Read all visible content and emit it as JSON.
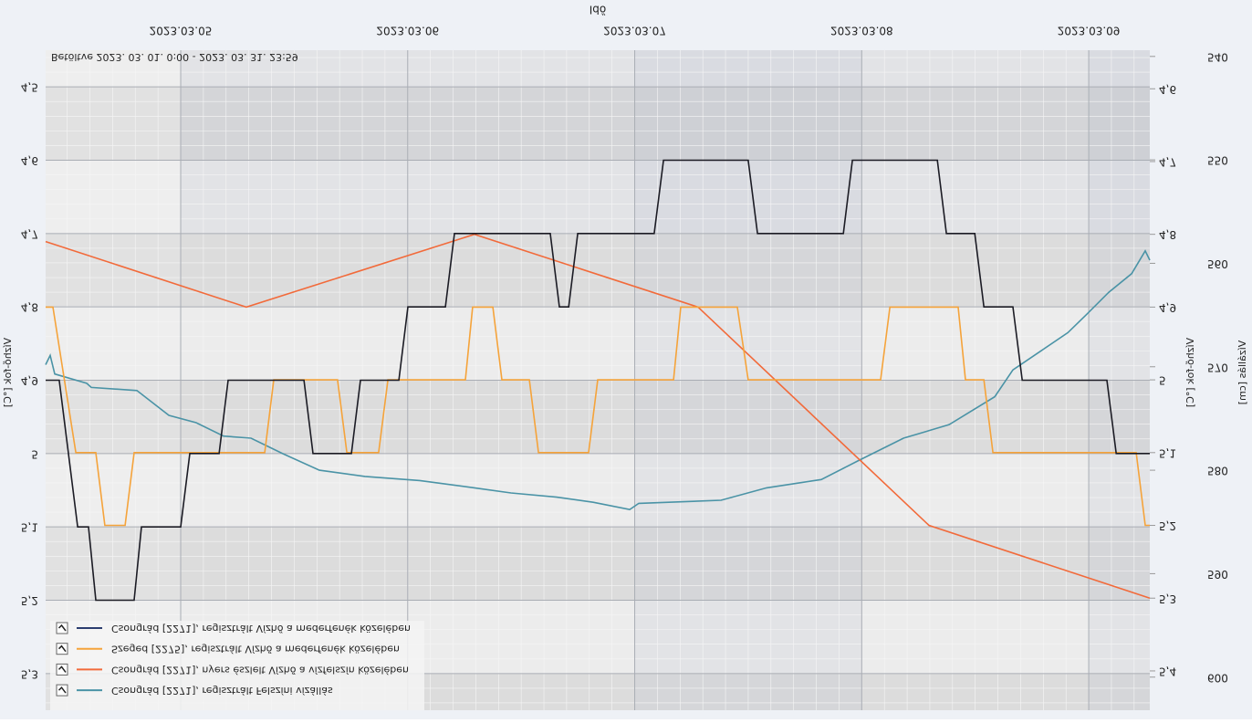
{
  "chart_data": {
    "type": "line",
    "xlabel": "Idő",
    "ylabel": "Vízhő-fok [°C]",
    "y2label": "Vízhő-fok [°C]",
    "y3label": "Vízállás [cm]",
    "annotation": "Betöltve 2023. 03. 01. 0:00 - 2023. 03. 31. 23:59",
    "xlim": [
      4.405,
      9.269
    ],
    "xticks": [
      {
        "value": 5,
        "label": "2023.03.05"
      },
      {
        "value": 6,
        "label": "2023.03.06"
      },
      {
        "value": 7,
        "label": "2023.03.07"
      },
      {
        "value": 8,
        "label": "2023.03.08"
      },
      {
        "value": 9,
        "label": "2023.03.09"
      }
    ],
    "ylim": [
      4.45,
      5.35
    ],
    "yticks": [
      {
        "value": 4.5,
        "label": "4,5"
      },
      {
        "value": 4.6,
        "label": "4,6"
      },
      {
        "value": 4.7,
        "label": "4,7"
      },
      {
        "value": 4.8,
        "label": "4,8"
      },
      {
        "value": 4.9,
        "label": "4,9"
      },
      5,
      {
        "value": 5.1,
        "label": "5,1"
      },
      {
        "value": 5.2,
        "label": "5,2"
      },
      {
        "value": 5.3,
        "label": "5,3"
      }
    ],
    "y2lim": [
      4.547,
      5.454
    ],
    "y2ticks": [
      {
        "value": 4.6,
        "label": "4,6"
      },
      {
        "value": 4.7,
        "label": "4,7"
      },
      {
        "value": 4.8,
        "label": "4,8"
      },
      {
        "value": 4.9,
        "label": "4,9"
      },
      5,
      {
        "value": 5.1,
        "label": "5,1"
      },
      {
        "value": 5.2,
        "label": "5,2"
      },
      {
        "value": 5.3,
        "label": "5,3"
      },
      {
        "value": 5.4,
        "label": "5,4"
      }
    ],
    "y3lim": [
      539.4,
      603.2
    ],
    "y3ticks": [
      540,
      550,
      560,
      570,
      580,
      590,
      600
    ],
    "grid": true,
    "series": [
      {
        "name": "Csongrád [2271], regisztrált Vízhő a mederfenék közelében",
        "color": "#1b1b24",
        "legend_color": "#2c3e70",
        "axis": "y",
        "x": [
          4.405,
          4.465,
          4.546,
          4.594,
          4.626,
          4.795,
          4.827,
          5.0,
          5.04,
          5.169,
          5.209,
          5.543,
          5.583,
          5.752,
          5.792,
          5.961,
          6.001,
          6.166,
          6.206,
          6.628,
          6.668,
          6.709,
          6.749,
          7.086,
          7.127,
          7.5,
          7.541,
          7.919,
          7.959,
          8.333,
          8.373,
          8.498,
          8.538,
          8.666,
          8.707,
          9.08,
          9.121,
          9.269
        ],
        "values": [
          4.9,
          4.9,
          5.1,
          5.1,
          5.2,
          5.2,
          5.1,
          5.1,
          5.0,
          5.0,
          4.9,
          4.9,
          5.0,
          5.0,
          4.9,
          4.9,
          4.8,
          4.8,
          4.7,
          4.7,
          4.8,
          4.8,
          4.7,
          4.7,
          4.6,
          4.6,
          4.7,
          4.7,
          4.6,
          4.6,
          4.7,
          4.7,
          4.8,
          4.8,
          4.9,
          4.9,
          5.0,
          5.0
        ]
      },
      {
        "name": "Szeged [2275], regisztrált Vízhő a mederfenék közelében",
        "color": "#f5a33a",
        "axis": "y2",
        "x": [
          4.405,
          4.437,
          4.538,
          4.626,
          4.666,
          4.755,
          4.795,
          5.37,
          5.41,
          5.691,
          5.732,
          5.872,
          5.913,
          6.254,
          6.286,
          6.375,
          6.415,
          6.536,
          6.576,
          6.797,
          6.837,
          7.171,
          7.203,
          7.452,
          7.5,
          8.083,
          8.124,
          8.425,
          8.457,
          8.538,
          8.578,
          9.209,
          9.249,
          9.269
        ],
        "values": [
          4.9,
          4.9,
          5.1,
          5.1,
          5.2,
          5.2,
          5.1,
          5.1,
          5.0,
          5.0,
          5.1,
          5.1,
          5.0,
          5.0,
          4.9,
          4.9,
          5.0,
          5.0,
          5.1,
          5.1,
          5.0,
          5.0,
          4.9,
          4.9,
          5.0,
          5.0,
          4.9,
          4.9,
          5.0,
          5.0,
          5.1,
          5.1,
          5.2,
          5.2
        ]
      },
      {
        "name": "Csongrád [2271], nyers észlelt Vízhő a vízfelszín közelében",
        "color": "#f26a3a",
        "axis": "y2",
        "x": [
          4.405,
          5.289,
          6.294,
          7.279,
          8.296,
          9.269
        ],
        "values": [
          4.81,
          4.9,
          4.8,
          4.9,
          5.2,
          5.3
        ]
      },
      {
        "name": "Csongrád [2271], regisztrált Felszíni vízállás",
        "color": "#4a93a6",
        "axis": "y3",
        "x": [
          4.405,
          4.425,
          4.445,
          4.586,
          4.606,
          4.807,
          4.948,
          5.068,
          5.189,
          5.31,
          5.45,
          5.611,
          5.812,
          6.053,
          6.294,
          6.455,
          6.656,
          6.817,
          6.978,
          7.018,
          7.38,
          7.581,
          7.822,
          7.983,
          8.184,
          8.385,
          8.586,
          8.666,
          8.787,
          8.908,
          8.988,
          9.088,
          9.189,
          9.249,
          9.269
        ],
        "values": [
          569.8,
          568.9,
          570.7,
          571.6,
          572.0,
          572.3,
          574.7,
          575.4,
          576.7,
          576.9,
          578.4,
          580.0,
          580.6,
          581.0,
          581.7,
          582.2,
          582.6,
          583.1,
          583.8,
          583.2,
          582.9,
          581.7,
          580.9,
          579.1,
          576.9,
          575.6,
          572.9,
          570.3,
          568.5,
          566.7,
          565.0,
          562.8,
          561.0,
          558.8,
          559.7
        ]
      }
    ]
  }
}
